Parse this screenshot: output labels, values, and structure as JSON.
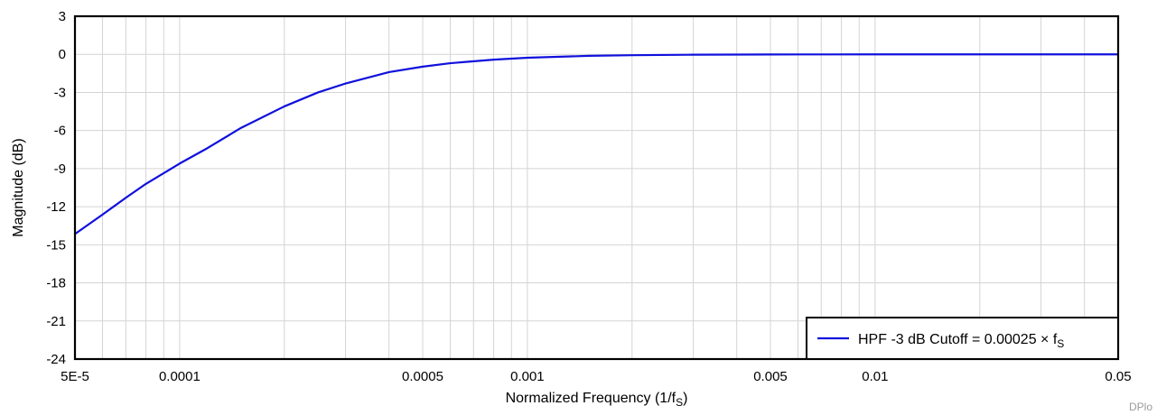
{
  "chart_data": {
    "type": "line",
    "xlabel": "Normalized Frequency (1/f",
    "xlabel_sub": "S",
    "xlabel_close": ")",
    "ylabel": "Magnitude (dB)",
    "xscale": "log",
    "xlim": [
      5e-05,
      0.05
    ],
    "ylim": [
      -24,
      3
    ],
    "grid": true,
    "legend_position": "bottom-right",
    "x_tick_values": [
      5e-05,
      0.0001,
      0.0005,
      0.001,
      0.005,
      0.01,
      0.05
    ],
    "x_tick_labels": [
      "5E-5",
      "0.0001",
      "0.0005",
      "0.001",
      "0.005",
      "0.01",
      "0.05"
    ],
    "y_tick_values": [
      3,
      0,
      -3,
      -6,
      -9,
      -12,
      -15,
      -18,
      -21,
      -24
    ],
    "y_tick_labels": [
      "3",
      "0",
      "-3",
      "-6",
      "-9",
      "-12",
      "-15",
      "-18",
      "-21",
      "-24"
    ],
    "series": [
      {
        "name": "HPF -3 dB Cutoff = 0.00025 × f",
        "name_sub": "S",
        "color": "#1010dd",
        "x": [
          5e-05,
          6e-05,
          7e-05,
          8e-05,
          0.0001,
          0.00012,
          0.00015,
          0.0002,
          0.00025,
          0.0003,
          0.0004,
          0.0005,
          0.0006,
          0.0008,
          0.001,
          0.0015,
          0.002,
          0.003,
          0.005,
          0.0075,
          0.01,
          0.02,
          0.03,
          0.05
        ],
        "y": [
          -14.15,
          -12.62,
          -11.3,
          -10.2,
          -8.6,
          -7.4,
          -5.8,
          -4.1,
          -3.0,
          -2.3,
          -1.4,
          -0.97,
          -0.7,
          -0.42,
          -0.27,
          -0.12,
          -0.068,
          -0.03,
          -0.011,
          -0.005,
          -0.003,
          -0.0007,
          -0.0003,
          -0.0001
        ]
      }
    ]
  },
  "watermark": "DPlo"
}
